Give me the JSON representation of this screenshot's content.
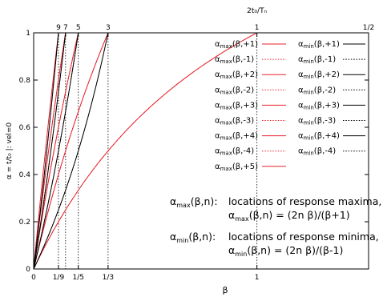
{
  "chart_data": {
    "type": "line",
    "xlabel": "β",
    "ylabel": "α = t/t₀ |: vel=0",
    "top_axis_label": "2t₀/Tₙ",
    "xlim": [
      0,
      1.5
    ],
    "ylim": [
      0,
      1
    ],
    "x_ticks": [
      {
        "value": 0,
        "label": "0"
      },
      {
        "value": 0.1111,
        "label": "1/9"
      },
      {
        "value": 0.2,
        "label": "1/5"
      },
      {
        "value": 0.3333,
        "label": "1/3"
      },
      {
        "value": 1,
        "label": "1"
      }
    ],
    "y_ticks": [
      {
        "value": 0,
        "label": "0"
      },
      {
        "value": 0.2,
        "label": "0.2"
      },
      {
        "value": 0.4,
        "label": "0.4"
      },
      {
        "value": 0.6,
        "label": "0.6"
      },
      {
        "value": 0.8,
        "label": "0.8"
      },
      {
        "value": 1,
        "label": "1"
      }
    ],
    "top_ticks": [
      {
        "value": 0.1111,
        "label": "9"
      },
      {
        "value": 0.1429,
        "label": "7"
      },
      {
        "value": 0.2,
        "label": "5"
      },
      {
        "value": 0.3333,
        "label": "3"
      },
      {
        "value": 1,
        "label": "1"
      },
      {
        "value": 1.5,
        "label": "1/2"
      }
    ],
    "vertical_guides": [
      0.1111,
      0.1429,
      0.2,
      0.3333,
      1
    ],
    "grid": false,
    "legend_position": "right",
    "series": [
      {
        "name": "max",
        "n": 1,
        "color": "#e8202a",
        "dash": "solid"
      },
      {
        "name": "max",
        "n": -1,
        "color": "#e8202a",
        "dash": "dotted"
      },
      {
        "name": "max",
        "n": 2,
        "color": "#e8202a",
        "dash": "solid"
      },
      {
        "name": "max",
        "n": -2,
        "color": "#e8202a",
        "dash": "dotted"
      },
      {
        "name": "max",
        "n": 3,
        "color": "#e8202a",
        "dash": "solid"
      },
      {
        "name": "max",
        "n": -3,
        "color": "#e8202a",
        "dash": "dotted"
      },
      {
        "name": "max",
        "n": 4,
        "color": "#e8202a",
        "dash": "solid"
      },
      {
        "name": "max",
        "n": -4,
        "color": "#e8202a",
        "dash": "dotted"
      },
      {
        "name": "max",
        "n": 5,
        "color": "#e8202a",
        "dash": "solid"
      },
      {
        "name": "min",
        "n": 1,
        "color": "#000000",
        "dash": "solid"
      },
      {
        "name": "min",
        "n": -1,
        "color": "#000000",
        "dash": "dotted"
      },
      {
        "name": "min",
        "n": 2,
        "color": "#000000",
        "dash": "solid"
      },
      {
        "name": "min",
        "n": -2,
        "color": "#000000",
        "dash": "dotted"
      },
      {
        "name": "min",
        "n": 3,
        "color": "#000000",
        "dash": "solid"
      },
      {
        "name": "min",
        "n": -3,
        "color": "#000000",
        "dash": "dotted"
      },
      {
        "name": "min",
        "n": 4,
        "color": "#000000",
        "dash": "solid"
      },
      {
        "name": "min",
        "n": -4,
        "color": "#000000",
        "dash": "dotted"
      }
    ],
    "legend_max": [
      {
        "label": "α",
        "sub": "max",
        "args": "(β,+1)"
      },
      {
        "label": "α",
        "sub": "max",
        "args": "(β,-1)"
      },
      {
        "label": "α",
        "sub": "max",
        "args": "(β,+2)"
      },
      {
        "label": "α",
        "sub": "max",
        "args": "(β,-2)"
      },
      {
        "label": "α",
        "sub": "max",
        "args": "(β,+3)"
      },
      {
        "label": "α",
        "sub": "max",
        "args": "(β,-3)"
      },
      {
        "label": "α",
        "sub": "max",
        "args": "(β,+4)"
      },
      {
        "label": "α",
        "sub": "max",
        "args": "(β,-4)"
      },
      {
        "label": "α",
        "sub": "max",
        "args": "(β,+5)"
      }
    ],
    "legend_min": [
      {
        "label": "α",
        "sub": "min",
        "args": "(β,+1)"
      },
      {
        "label": "α",
        "sub": "min",
        "args": "(β,-1)"
      },
      {
        "label": "α",
        "sub": "min",
        "args": "(β,+2)"
      },
      {
        "label": "α",
        "sub": "min",
        "args": "(β,-2)"
      },
      {
        "label": "α",
        "sub": "min",
        "args": "(β,+3)"
      },
      {
        "label": "α",
        "sub": "min",
        "args": "(β,-3)"
      },
      {
        "label": "α",
        "sub": "min",
        "args": "(β,+4)"
      },
      {
        "label": "α",
        "sub": "min",
        "args": "(β,-4)"
      }
    ],
    "annotations": [
      {
        "head": "α",
        "head_sub": "max",
        "head_args": "(β,n):",
        "line1": "locations of response maxima,",
        "formula_head": "α",
        "formula_sub": "max",
        "formula_rest": "(β,n) = (2n β)/(β+1)"
      },
      {
        "head": "α",
        "head_sub": "min",
        "head_args": "(β,n):",
        "line1": "locations of response minima,",
        "formula_head": "α",
        "formula_sub": "min",
        "formula_rest": "(β,n) = (2n β)/(β-1)"
      }
    ]
  }
}
